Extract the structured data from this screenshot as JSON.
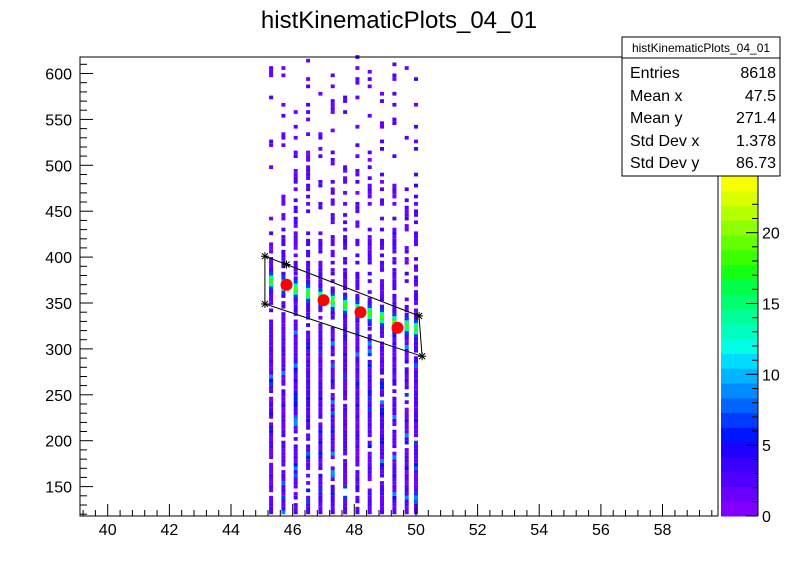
{
  "chart_data": {
    "type": "heatmap",
    "title": "histKinematicPlots_04_01",
    "xlabel": "",
    "ylabel": "",
    "xlim": [
      39.1,
      59.8
    ],
    "ylim": [
      118,
      618
    ],
    "x_ticks": [
      40,
      42,
      44,
      46,
      48,
      50,
      52,
      54,
      56,
      58
    ],
    "y_ticks": [
      150,
      200,
      250,
      300,
      350,
      400,
      450,
      500,
      550,
      600
    ],
    "x_tick_labels": [
      "40",
      "42",
      "44",
      "46",
      "48",
      "50",
      "52",
      "54",
      "56",
      "58"
    ],
    "y_tick_labels": [
      "150",
      "200",
      "250",
      "300",
      "350",
      "400",
      "450",
      "500",
      "550",
      "600"
    ],
    "z_range": [
      0,
      24
    ],
    "z_ticks": [
      0,
      5,
      10,
      15,
      20
    ],
    "z_tick_labels": [
      "0",
      "5",
      "10",
      "15",
      "20"
    ],
    "palette": [
      "#7f00ff",
      "#6a00ff",
      "#5000ff",
      "#3a00ff",
      "#1f00ff",
      "#0014ff",
      "#003cff",
      "#0064ff",
      "#008cff",
      "#00b4ff",
      "#00dcff",
      "#00ffe6",
      "#00ffbe",
      "#00ff96",
      "#00ff6e",
      "#00ff46",
      "#14ff14",
      "#3cff00",
      "#64ff00",
      "#8cff00",
      "#b4ff00",
      "#dcff00",
      "#f5ff00"
    ],
    "columns_x": [
      45.3,
      45.7,
      46.1,
      46.5,
      46.9,
      47.3,
      47.7,
      48.1,
      48.5,
      48.9,
      49.3,
      49.7,
      50.0
    ],
    "band": {
      "x": [
        45.3,
        50.0
      ],
      "y": [
        372,
        320
      ],
      "peak_z": 18
    },
    "markers": [
      {
        "x": 45.8,
        "y": 370
      },
      {
        "x": 47.0,
        "y": 353
      },
      {
        "x": 48.2,
        "y": 340
      },
      {
        "x": 49.4,
        "y": 323
      }
    ],
    "cut_polygon": [
      {
        "x": 45.1,
        "y": 401
      },
      {
        "x": 45.8,
        "y": 392
      },
      {
        "x": 50.1,
        "y": 336
      },
      {
        "x": 50.2,
        "y": 292
      },
      {
        "x": 45.1,
        "y": 349
      }
    ],
    "stats": {
      "title": "histKinematicPlots_04_01",
      "rows": [
        {
          "label": "Entries",
          "value": "8618"
        },
        {
          "label": "Mean x",
          "value": "47.5"
        },
        {
          "label": "Mean y",
          "value": "271.4"
        },
        {
          "label": "Std Dev x",
          "value": "1.378"
        },
        {
          "label": "Std Dev y",
          "value": "86.73"
        }
      ]
    }
  }
}
